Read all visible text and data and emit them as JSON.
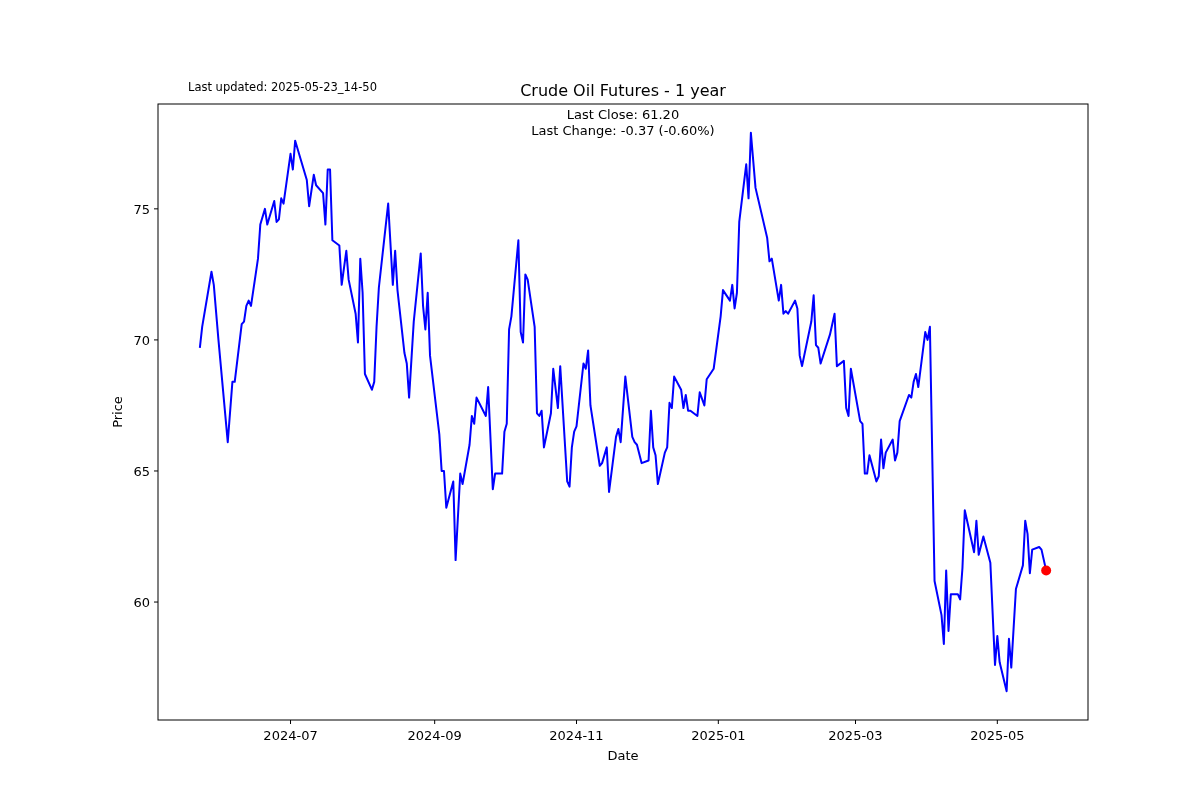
{
  "chart_data": {
    "type": "line",
    "title": "Crude Oil Futures - 1 year",
    "xlabel": "Date",
    "ylabel": "Price",
    "annotations": [
      "Last updated: 2025-05-23_14-50",
      "Last Close: 61.20",
      "Last Change: -0.37 (-0.60%)"
    ],
    "xlim": [
      "2024-05-05",
      "2025-06-09"
    ],
    "xticks": [
      {
        "value": "2024-07-01",
        "label": "2024-07"
      },
      {
        "value": "2024-09-01",
        "label": "2024-09"
      },
      {
        "value": "2024-11-01",
        "label": "2024-11"
      },
      {
        "value": "2025-01-01",
        "label": "2025-01"
      },
      {
        "value": "2025-03-01",
        "label": "2025-03"
      },
      {
        "value": "2025-05-01",
        "label": "2025-05"
      }
    ],
    "ylim": [
      55.5,
      79.0
    ],
    "yticks": [
      60,
      65,
      70,
      75
    ],
    "grid": false,
    "series": [
      {
        "type": "line",
        "color": "#0000ff",
        "line_style": "solid",
        "x": [
          "2024-05-23",
          "2024-05-24",
          "2024-05-28",
          "2024-05-29",
          "2024-05-31",
          "2024-06-04",
          "2024-06-06",
          "2024-06-07",
          "2024-06-10",
          "2024-06-11",
          "2024-06-12",
          "2024-06-13",
          "2024-06-14",
          "2024-06-17",
          "2024-06-18",
          "2024-06-20",
          "2024-06-21",
          "2024-06-24",
          "2024-06-25",
          "2024-06-26",
          "2024-06-27",
          "2024-06-28",
          "2024-07-01",
          "2024-07-02",
          "2024-07-03",
          "2024-07-08",
          "2024-07-09",
          "2024-07-11",
          "2024-07-12",
          "2024-07-15",
          "2024-07-16",
          "2024-07-17",
          "2024-07-18",
          "2024-07-19",
          "2024-07-22",
          "2024-07-23",
          "2024-07-25",
          "2024-07-26",
          "2024-07-29",
          "2024-07-30",
          "2024-07-31",
          "2024-08-01",
          "2024-08-02",
          "2024-08-05",
          "2024-08-06",
          "2024-08-07",
          "2024-08-08",
          "2024-08-12",
          "2024-08-14",
          "2024-08-15",
          "2024-08-16",
          "2024-08-19",
          "2024-08-20",
          "2024-08-21",
          "2024-08-23",
          "2024-08-26",
          "2024-08-27",
          "2024-08-28",
          "2024-08-29",
          "2024-08-30",
          "2024-09-03",
          "2024-09-04",
          "2024-09-05",
          "2024-09-06",
          "2024-09-09",
          "2024-09-10",
          "2024-09-12",
          "2024-09-13",
          "2024-09-16",
          "2024-09-17",
          "2024-09-18",
          "2024-09-19",
          "2024-09-23",
          "2024-09-24",
          "2024-09-26",
          "2024-09-27",
          "2024-09-30",
          "2024-10-01",
          "2024-10-02",
          "2024-10-03",
          "2024-10-04",
          "2024-10-07",
          "2024-10-08",
          "2024-10-09",
          "2024-10-10",
          "2024-10-11",
          "2024-10-14",
          "2024-10-15",
          "2024-10-16",
          "2024-10-17",
          "2024-10-18",
          "2024-10-21",
          "2024-10-22",
          "2024-10-24",
          "2024-10-25",
          "2024-10-28",
          "2024-10-29",
          "2024-10-30",
          "2024-10-31",
          "2024-11-01",
          "2024-11-04",
          "2024-11-05",
          "2024-11-06",
          "2024-11-07",
          "2024-11-11",
          "2024-11-12",
          "2024-11-14",
          "2024-11-15",
          "2024-11-18",
          "2024-11-19",
          "2024-11-20",
          "2024-11-22",
          "2024-11-25",
          "2024-11-26",
          "2024-11-27",
          "2024-11-29",
          "2024-12-02",
          "2024-12-03",
          "2024-12-04",
          "2024-12-05",
          "2024-12-06",
          "2024-12-09",
          "2024-12-10",
          "2024-12-11",
          "2024-12-12",
          "2024-12-13",
          "2024-12-16",
          "2024-12-17",
          "2024-12-18",
          "2024-12-19",
          "2024-12-20",
          "2024-12-23",
          "2024-12-24",
          "2024-12-26",
          "2024-12-27",
          "2024-12-30",
          "2025-01-02",
          "2025-01-03",
          "2025-01-06",
          "2025-01-07",
          "2025-01-08",
          "2025-01-09",
          "2025-01-10",
          "2025-01-13",
          "2025-01-14",
          "2025-01-15",
          "2025-01-17",
          "2025-01-22",
          "2025-01-23",
          "2025-01-24",
          "2025-01-27",
          "2025-01-28",
          "2025-01-29",
          "2025-01-30",
          "2025-01-31",
          "2025-02-03",
          "2025-02-04",
          "2025-02-05",
          "2025-02-06",
          "2025-02-10",
          "2025-02-11",
          "2025-02-12",
          "2025-02-13",
          "2025-02-14",
          "2025-02-18",
          "2025-02-20",
          "2025-02-21",
          "2025-02-24",
          "2025-02-25",
          "2025-02-26",
          "2025-02-27",
          "2025-03-03",
          "2025-03-04",
          "2025-03-05",
          "2025-03-06",
          "2025-03-07",
          "2025-03-10",
          "2025-03-11",
          "2025-03-12",
          "2025-03-13",
          "2025-03-14",
          "2025-03-17",
          "2025-03-18",
          "2025-03-19",
          "2025-03-20",
          "2025-03-24",
          "2025-03-25",
          "2025-03-26",
          "2025-03-27",
          "2025-03-28",
          "2025-03-31",
          "2025-04-01",
          "2025-04-02",
          "2025-04-04",
          "2025-04-07",
          "2025-04-08",
          "2025-04-09",
          "2025-04-10",
          "2025-04-11",
          "2025-04-14",
          "2025-04-15",
          "2025-04-16",
          "2025-04-17",
          "2025-04-21",
          "2025-04-22",
          "2025-04-23",
          "2025-04-25",
          "2025-04-28",
          "2025-04-30",
          "2025-05-01",
          "2025-05-02",
          "2025-05-05",
          "2025-05-06",
          "2025-05-07",
          "2025-05-09",
          "2025-05-12",
          "2025-05-13",
          "2025-05-14",
          "2025-05-15",
          "2025-05-16",
          "2025-05-19",
          "2025-05-20",
          "2025-05-22"
        ],
        "values": [
          69.7,
          70.5,
          72.6,
          72.1,
          70.0,
          66.1,
          68.4,
          68.4,
          70.6,
          70.7,
          71.3,
          71.5,
          71.3,
          73.1,
          74.4,
          75.0,
          74.4,
          75.3,
          74.5,
          74.6,
          75.4,
          75.2,
          77.1,
          76.5,
          77.6,
          76.1,
          75.1,
          76.3,
          75.9,
          75.6,
          74.4,
          76.5,
          76.5,
          73.8,
          73.6,
          72.1,
          73.4,
          72.3,
          71.0,
          69.9,
          73.1,
          71.8,
          68.7,
          68.1,
          68.4,
          70.5,
          72.0,
          75.2,
          72.1,
          73.4,
          71.9,
          69.5,
          69.1,
          67.8,
          70.7,
          73.3,
          71.3,
          70.4,
          71.8,
          69.4,
          66.4,
          65.0,
          65.0,
          63.6,
          64.6,
          61.6,
          64.9,
          64.5,
          66.0,
          67.1,
          66.8,
          67.8,
          67.1,
          68.2,
          64.3,
          64.9,
          64.9,
          66.5,
          66.8,
          70.4,
          70.9,
          73.8,
          70.3,
          69.9,
          72.5,
          72.3,
          70.5,
          67.2,
          67.1,
          67.3,
          65.9,
          67.2,
          68.9,
          67.4,
          69.0,
          64.6,
          64.4,
          65.9,
          66.5,
          66.7,
          69.1,
          68.9,
          69.6,
          67.5,
          65.2,
          65.3,
          65.9,
          64.2,
          66.3,
          66.6,
          66.1,
          68.6,
          66.3,
          66.1,
          66.0,
          65.3,
          65.4,
          67.3,
          65.9,
          65.6,
          64.5,
          65.7,
          65.9,
          67.6,
          67.4,
          68.6,
          68.1,
          67.4,
          67.9,
          67.3,
          67.3,
          67.1,
          68.0,
          67.5,
          68.5,
          68.9,
          70.9,
          71.9,
          71.5,
          72.1,
          71.2,
          71.8,
          74.5,
          76.7,
          75.4,
          77.9,
          75.8,
          73.9,
          73.0,
          73.1,
          71.5,
          72.1,
          71.0,
          71.1,
          71.0,
          71.5,
          71.2,
          69.4,
          69.0,
          70.7,
          71.7,
          69.8,
          69.7,
          69.1,
          70.2,
          71.0,
          69.0,
          69.2,
          67.4,
          67.1,
          68.9,
          66.9,
          66.8,
          64.9,
          64.9,
          65.6,
          64.6,
          64.8,
          66.2,
          65.1,
          65.7,
          66.2,
          65.4,
          65.7,
          66.9,
          67.9,
          67.8,
          68.4,
          68.7,
          68.2,
          70.3,
          70.0,
          70.5,
          60.8,
          59.5,
          58.4,
          61.2,
          58.9,
          60.3,
          60.3,
          60.1,
          61.3,
          63.5,
          61.9,
          63.1,
          61.8,
          62.5,
          61.5,
          57.6,
          58.7,
          57.7,
          56.6,
          58.6,
          57.5,
          60.5,
          61.4,
          63.1,
          62.6,
          61.1,
          62.0,
          62.1,
          62.0,
          61.2
        ]
      },
      {
        "type": "scatter",
        "color": "#ff0000",
        "marker": "circle",
        "x": [
          "2025-05-22"
        ],
        "values": [
          61.2
        ]
      }
    ]
  }
}
